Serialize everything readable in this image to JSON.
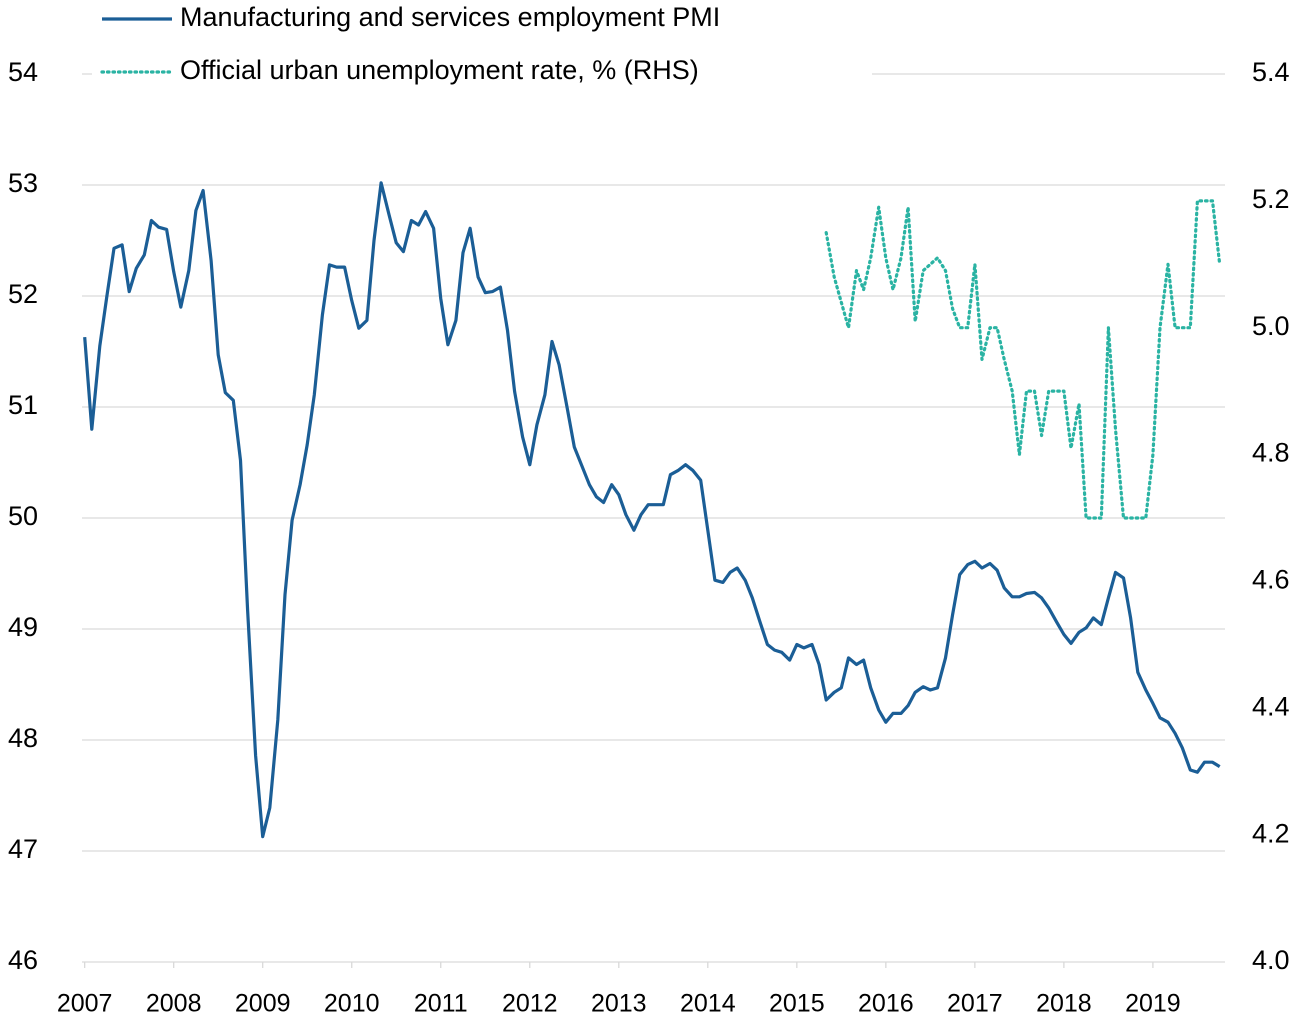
{
  "chart_data": {
    "type": "line",
    "legend": "top-left",
    "grid": true,
    "x": [
      2007,
      2007.08,
      2007.17,
      2007.25,
      2007.33,
      2007.42,
      2007.5,
      2007.58,
      2007.67,
      2007.75,
      2007.83,
      2007.92,
      2008,
      2008.08,
      2008.17,
      2008.25,
      2008.33,
      2008.42,
      2008.5,
      2008.58,
      2008.67,
      2008.75,
      2008.83,
      2008.92,
      2009,
      2009.08,
      2009.17,
      2009.25,
      2009.33,
      2009.42,
      2009.5,
      2009.58,
      2009.67,
      2009.75,
      2009.83,
      2009.92,
      2010,
      2010.08,
      2010.17,
      2010.25,
      2010.33,
      2010.42,
      2010.5,
      2010.58,
      2010.67,
      2010.75,
      2010.83,
      2010.92,
      2011,
      2011.08,
      2011.17,
      2011.25,
      2011.33,
      2011.42,
      2011.5,
      2011.58,
      2011.67,
      2011.75,
      2011.83,
      2011.92,
      2012,
      2012.08,
      2012.17,
      2012.25,
      2012.33,
      2012.42,
      2012.5,
      2012.58,
      2012.67,
      2012.75,
      2012.83,
      2012.92,
      2013,
      2013.08,
      2013.17,
      2013.25,
      2013.33,
      2013.42,
      2013.5,
      2013.58,
      2013.67,
      2013.75,
      2013.83,
      2013.92,
      2014,
      2014.08,
      2014.17,
      2014.25,
      2014.33,
      2014.42,
      2014.5,
      2014.58,
      2014.67,
      2014.75,
      2014.83,
      2014.92,
      2015,
      2015.08,
      2015.17,
      2015.25,
      2015.33,
      2015.42,
      2015.5,
      2015.58,
      2015.67,
      2015.75,
      2015.83,
      2015.92,
      2016,
      2016.08,
      2016.17,
      2016.25,
      2016.33,
      2016.42,
      2016.5,
      2016.58,
      2016.67,
      2016.75,
      2016.83,
      2016.92,
      2017,
      2017.08,
      2017.17,
      2017.25,
      2017.33,
      2017.42,
      2017.5,
      2017.58,
      2017.67,
      2017.75,
      2017.83,
      2017.92,
      2018,
      2018.08,
      2018.17,
      2018.25,
      2018.33,
      2018.42,
      2018.5,
      2018.58,
      2018.67,
      2018.75,
      2018.83,
      2018.92,
      2019,
      2019.08,
      2019.17,
      2019.25,
      2019.33,
      2019.42,
      2019.5,
      2019.58,
      2019.67,
      2019.75
    ],
    "series": [
      {
        "name": "Manufacturing and services employment PMI",
        "color": "#1b5e96",
        "style": "solid",
        "values": [
          51.63,
          50.8,
          51.55,
          52.0,
          52.43,
          52.46,
          52.04,
          52.25,
          52.37,
          52.68,
          52.62,
          52.6,
          52.22,
          51.9,
          52.23,
          52.77,
          52.95,
          52.32,
          51.47,
          51.13,
          51.06,
          50.52,
          49.17,
          47.86,
          47.13,
          47.39,
          48.18,
          49.31,
          49.98,
          50.3,
          50.66,
          51.11,
          51.83,
          52.28,
          52.26,
          52.26,
          51.96,
          51.71,
          51.78,
          52.5,
          53.02,
          52.73,
          52.48,
          52.4,
          52.68,
          52.64,
          52.76,
          52.61,
          51.98,
          51.56,
          51.78,
          52.39,
          52.61,
          52.17,
          52.03,
          52.04,
          52.08,
          51.69,
          51.14,
          50.73,
          50.48,
          50.84,
          51.11,
          51.59,
          51.38,
          50.99,
          50.64,
          50.48,
          50.3,
          50.19,
          50.14,
          50.3,
          50.21,
          50.03,
          49.89,
          50.03,
          50.12,
          50.12,
          50.12,
          50.39,
          50.43,
          50.48,
          50.43,
          50.34,
          49.89,
          49.44,
          49.42,
          49.51,
          49.55,
          49.44,
          49.28,
          49.08,
          48.86,
          48.81,
          48.79,
          48.72,
          48.86,
          48.83,
          48.86,
          48.68,
          48.36,
          48.43,
          48.47,
          48.74,
          48.68,
          48.72,
          48.47,
          48.27,
          48.16,
          48.24,
          48.24,
          48.31,
          48.43,
          48.48,
          48.45,
          48.47,
          48.74,
          49.13,
          49.49,
          49.58,
          49.61,
          49.55,
          49.59,
          49.53,
          49.37,
          49.29,
          49.29,
          49.32,
          49.33,
          49.28,
          49.19,
          49.06,
          48.95,
          48.87,
          48.97,
          49.01,
          49.1,
          49.04,
          49.28,
          49.51,
          49.46,
          49.1,
          48.61,
          48.45,
          48.33,
          48.2,
          48.16,
          48.06,
          47.93,
          47.73,
          47.71,
          47.8,
          47.8,
          47.76
        ]
      },
      {
        "name": "Official urban unemployment rate, % (RHS)",
        "color": "#2ab3a3",
        "style": "dotted",
        "axis": "y2",
        "values": [
          null,
          null,
          null,
          null,
          null,
          null,
          null,
          null,
          null,
          null,
          null,
          null,
          null,
          null,
          null,
          null,
          null,
          null,
          null,
          null,
          null,
          null,
          null,
          null,
          null,
          null,
          null,
          null,
          null,
          null,
          null,
          null,
          null,
          null,
          null,
          null,
          null,
          null,
          null,
          null,
          null,
          null,
          null,
          null,
          null,
          null,
          null,
          null,
          null,
          null,
          null,
          null,
          null,
          null,
          null,
          null,
          null,
          null,
          null,
          null,
          null,
          null,
          null,
          null,
          null,
          null,
          null,
          null,
          null,
          null,
          null,
          null,
          null,
          null,
          null,
          null,
          null,
          null,
          null,
          null,
          null,
          null,
          null,
          null,
          null,
          null,
          null,
          null,
          null,
          null,
          null,
          null,
          null,
          null,
          null,
          null,
          null,
          null,
          null,
          null,
          5.15,
          5.08,
          5.04,
          5.0,
          5.09,
          5.06,
          5.11,
          5.19,
          5.11,
          5.06,
          5.11,
          5.19,
          5.01,
          5.09,
          5.1,
          5.11,
          5.09,
          5.03,
          5.0,
          5.0,
          5.1,
          4.95,
          5.0,
          5.0,
          4.95,
          4.9,
          4.8,
          4.9,
          4.9,
          4.83,
          4.9,
          4.9,
          4.9,
          4.81,
          4.88,
          4.7,
          4.7,
          4.7,
          5.0,
          4.84,
          4.7,
          4.7,
          4.7,
          4.7,
          4.8,
          5.0,
          5.1,
          5.0,
          5.0,
          5.0,
          5.2,
          5.2,
          5.2,
          5.1
        ]
      }
    ],
    "xlim": [
      2006.97,
      2019.81
    ],
    "xticks": [
      2007,
      2008,
      2009,
      2010,
      2011,
      2012,
      2013,
      2014,
      2015,
      2016,
      2017,
      2018,
      2019
    ],
    "ylim": [
      46,
      54
    ],
    "yticks": [
      46,
      47,
      48,
      49,
      50,
      51,
      52,
      53,
      54
    ],
    "y2lim": [
      4.0,
      5.4
    ],
    "y2ticks": [
      {
        "value": 4,
        "label": "4.0"
      },
      4.2,
      4.4,
      4.6,
      4.8,
      {
        "value": 5,
        "label": "5.0"
      },
      5.2,
      5.4
    ]
  }
}
